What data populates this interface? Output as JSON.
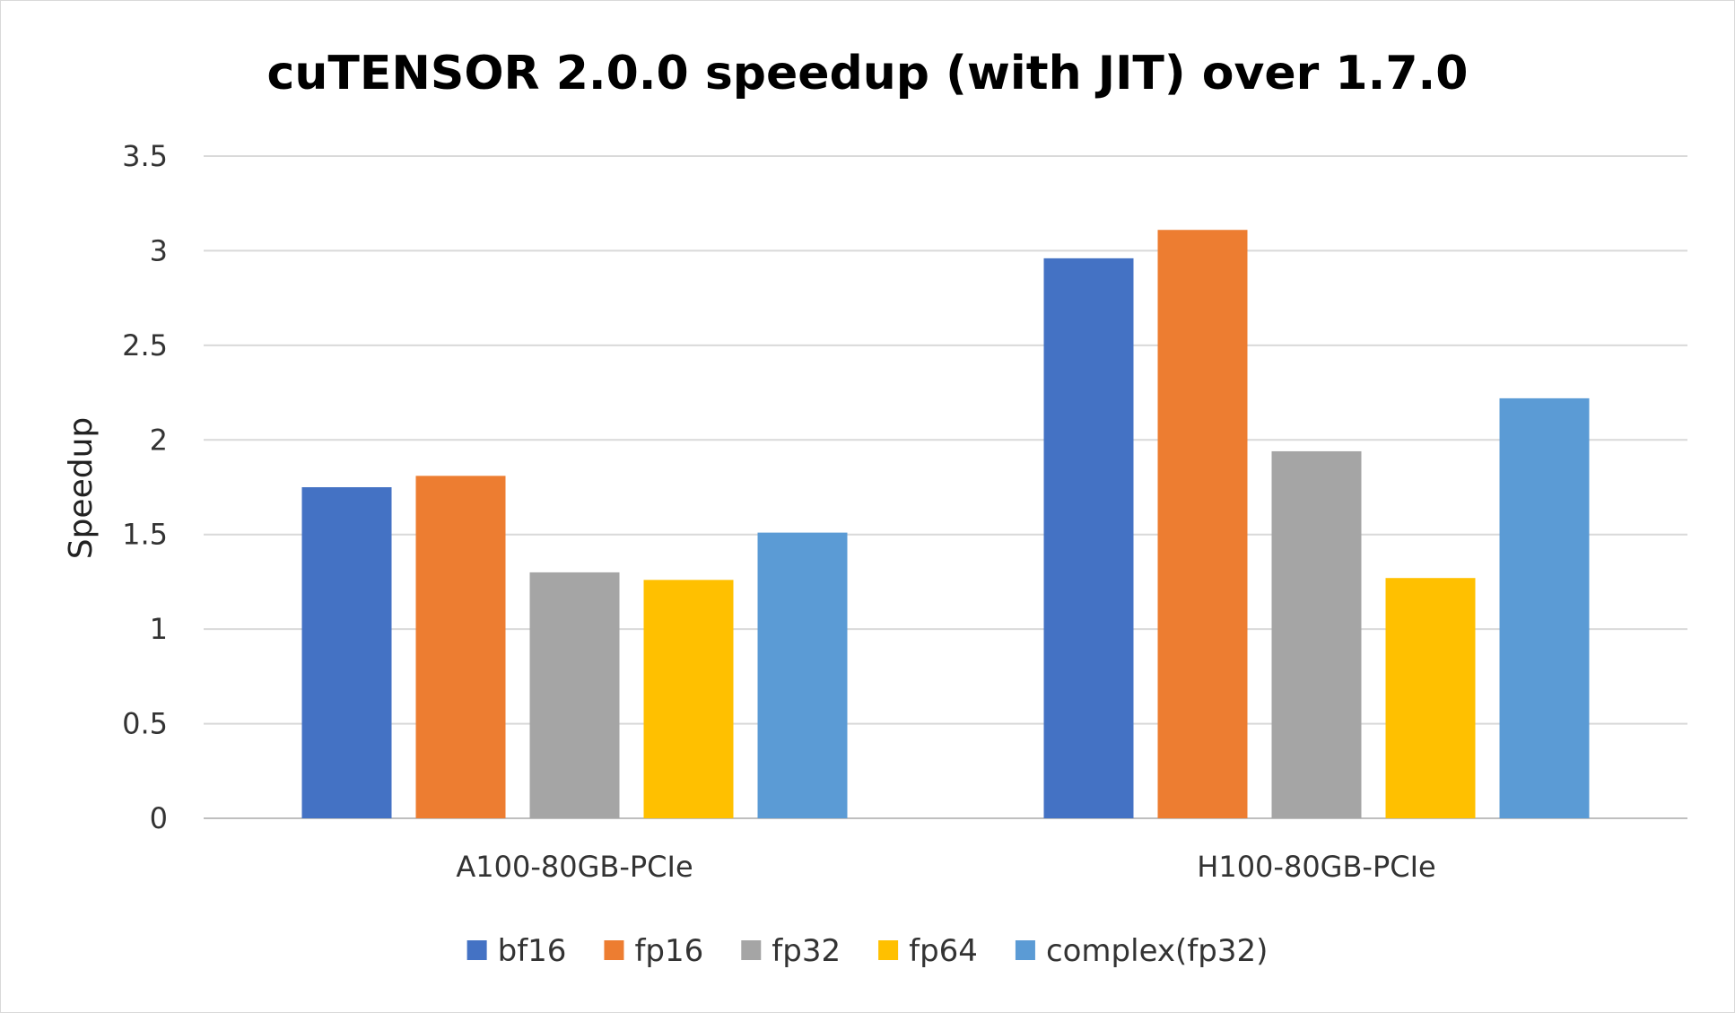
{
  "chart_data": {
    "type": "bar",
    "title": "cuTENSOR 2.0.0 speedup (with JIT) over 1.7.0",
    "xlabel": "",
    "ylabel": "Speedup",
    "ylim": [
      0,
      3.5
    ],
    "yticks": [
      "0",
      "0.5",
      "1",
      "1.5",
      "2",
      "2.5",
      "3",
      "3.5"
    ],
    "grid": true,
    "legend_position": "bottom",
    "categories": [
      "A100-80GB-PCIe",
      "H100-80GB-PCIe"
    ],
    "series": [
      {
        "name": "bf16",
        "color": "#4472C4",
        "values": [
          1.75,
          2.96
        ]
      },
      {
        "name": "fp16",
        "color": "#ED7D31",
        "values": [
          1.81,
          3.11
        ]
      },
      {
        "name": "fp32",
        "color": "#A5A5A5",
        "values": [
          1.3,
          1.94
        ]
      },
      {
        "name": "fp64",
        "color": "#FFC000",
        "values": [
          1.26,
          1.27
        ]
      },
      {
        "name": "complex(fp32)",
        "color": "#5B9BD5",
        "values": [
          1.51,
          2.22
        ]
      }
    ]
  }
}
